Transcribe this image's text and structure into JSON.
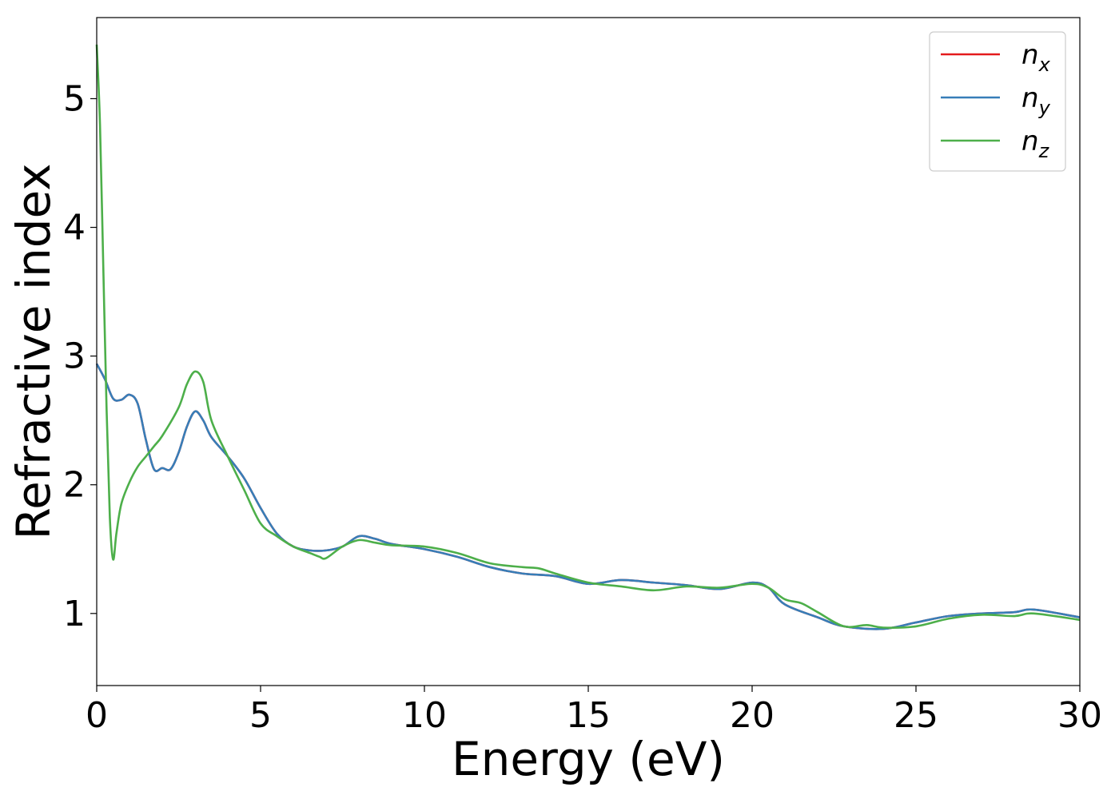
{
  "chart_data": {
    "type": "line",
    "title": "",
    "xlabel": "Energy (eV)",
    "ylabel": "Refractive index",
    "xlim": [
      0,
      30
    ],
    "ylim": [
      0.44,
      5.63
    ],
    "xticks": [
      0,
      5,
      10,
      15,
      20,
      25,
      30
    ],
    "yticks": [
      1,
      2,
      3,
      4,
      5
    ],
    "grid": false,
    "legend_position": "top-right",
    "series": [
      {
        "name": "n_x",
        "label_main": "n",
        "label_sub": "x",
        "color": "#e41a1c",
        "x": [
          0,
          0.25,
          0.5,
          0.75,
          1.0,
          1.25,
          1.5,
          1.75,
          2.0,
          2.25,
          2.5,
          2.75,
          3.0,
          3.25,
          3.5,
          4.0,
          4.5,
          5.0,
          5.5,
          6.0,
          6.5,
          7.0,
          7.5,
          8.0,
          8.5,
          9.0,
          10.0,
          11.0,
          12.0,
          13.0,
          14.0,
          15.0,
          16.0,
          17.0,
          18.0,
          19.0,
          20.0,
          20.5,
          21.0,
          22.0,
          22.8,
          24.0,
          25.0,
          26.0,
          27.0,
          28.0,
          28.6,
          30.0
        ],
        "y": [
          2.94,
          2.82,
          2.67,
          2.66,
          2.7,
          2.63,
          2.35,
          2.12,
          2.13,
          2.12,
          2.25,
          2.45,
          2.57,
          2.5,
          2.37,
          2.22,
          2.05,
          1.82,
          1.62,
          1.52,
          1.49,
          1.49,
          1.52,
          1.6,
          1.58,
          1.54,
          1.5,
          1.44,
          1.36,
          1.31,
          1.29,
          1.23,
          1.26,
          1.24,
          1.22,
          1.19,
          1.24,
          1.2,
          1.07,
          0.97,
          0.9,
          0.88,
          0.93,
          0.98,
          1.0,
          1.01,
          1.03,
          0.97
        ]
      },
      {
        "name": "n_y",
        "label_main": "n",
        "label_sub": "y",
        "color": "#377eb8",
        "x": [
          0,
          0.25,
          0.5,
          0.75,
          1.0,
          1.25,
          1.5,
          1.75,
          2.0,
          2.25,
          2.5,
          2.75,
          3.0,
          3.25,
          3.5,
          4.0,
          4.5,
          5.0,
          5.5,
          6.0,
          6.5,
          7.0,
          7.5,
          8.0,
          8.5,
          9.0,
          10.0,
          11.0,
          12.0,
          13.0,
          14.0,
          15.0,
          16.0,
          17.0,
          18.0,
          19.0,
          20.0,
          20.5,
          21.0,
          22.0,
          22.8,
          24.0,
          25.0,
          26.0,
          27.0,
          28.0,
          28.6,
          30.0
        ],
        "y": [
          2.94,
          2.82,
          2.67,
          2.66,
          2.7,
          2.63,
          2.35,
          2.12,
          2.13,
          2.12,
          2.25,
          2.45,
          2.57,
          2.5,
          2.37,
          2.22,
          2.05,
          1.82,
          1.62,
          1.52,
          1.49,
          1.49,
          1.52,
          1.6,
          1.58,
          1.54,
          1.5,
          1.44,
          1.36,
          1.31,
          1.29,
          1.23,
          1.26,
          1.24,
          1.22,
          1.19,
          1.24,
          1.2,
          1.07,
          0.97,
          0.9,
          0.88,
          0.93,
          0.98,
          1.0,
          1.01,
          1.03,
          0.97
        ]
      },
      {
        "name": "n_z",
        "label_main": "n",
        "label_sub": "z",
        "color": "#4daf4a",
        "x": [
          0,
          0.1,
          0.2,
          0.3,
          0.4,
          0.5,
          0.6,
          0.75,
          1.0,
          1.25,
          1.5,
          1.75,
          2.0,
          2.5,
          2.75,
          3.0,
          3.25,
          3.5,
          4.0,
          4.5,
          5.0,
          5.5,
          6.0,
          6.5,
          6.8,
          7.0,
          7.5,
          8.0,
          8.5,
          9.0,
          10.0,
          11.0,
          12.0,
          13.0,
          13.5,
          14.0,
          15.0,
          16.0,
          17.0,
          18.0,
          19.0,
          20.0,
          20.5,
          21.0,
          21.5,
          22.0,
          22.8,
          23.5,
          24.0,
          25.0,
          26.0,
          27.0,
          28.0,
          28.6,
          30.0
        ],
        "y": [
          5.42,
          4.8,
          3.7,
          2.6,
          1.75,
          1.42,
          1.62,
          1.85,
          2.02,
          2.14,
          2.22,
          2.3,
          2.38,
          2.6,
          2.78,
          2.88,
          2.8,
          2.5,
          2.22,
          1.96,
          1.7,
          1.6,
          1.52,
          1.47,
          1.44,
          1.43,
          1.52,
          1.57,
          1.55,
          1.53,
          1.52,
          1.47,
          1.39,
          1.36,
          1.35,
          1.31,
          1.24,
          1.21,
          1.18,
          1.21,
          1.2,
          1.23,
          1.2,
          1.11,
          1.08,
          1.01,
          0.9,
          0.91,
          0.89,
          0.9,
          0.96,
          0.99,
          0.98,
          1.0,
          0.95
        ]
      }
    ]
  }
}
